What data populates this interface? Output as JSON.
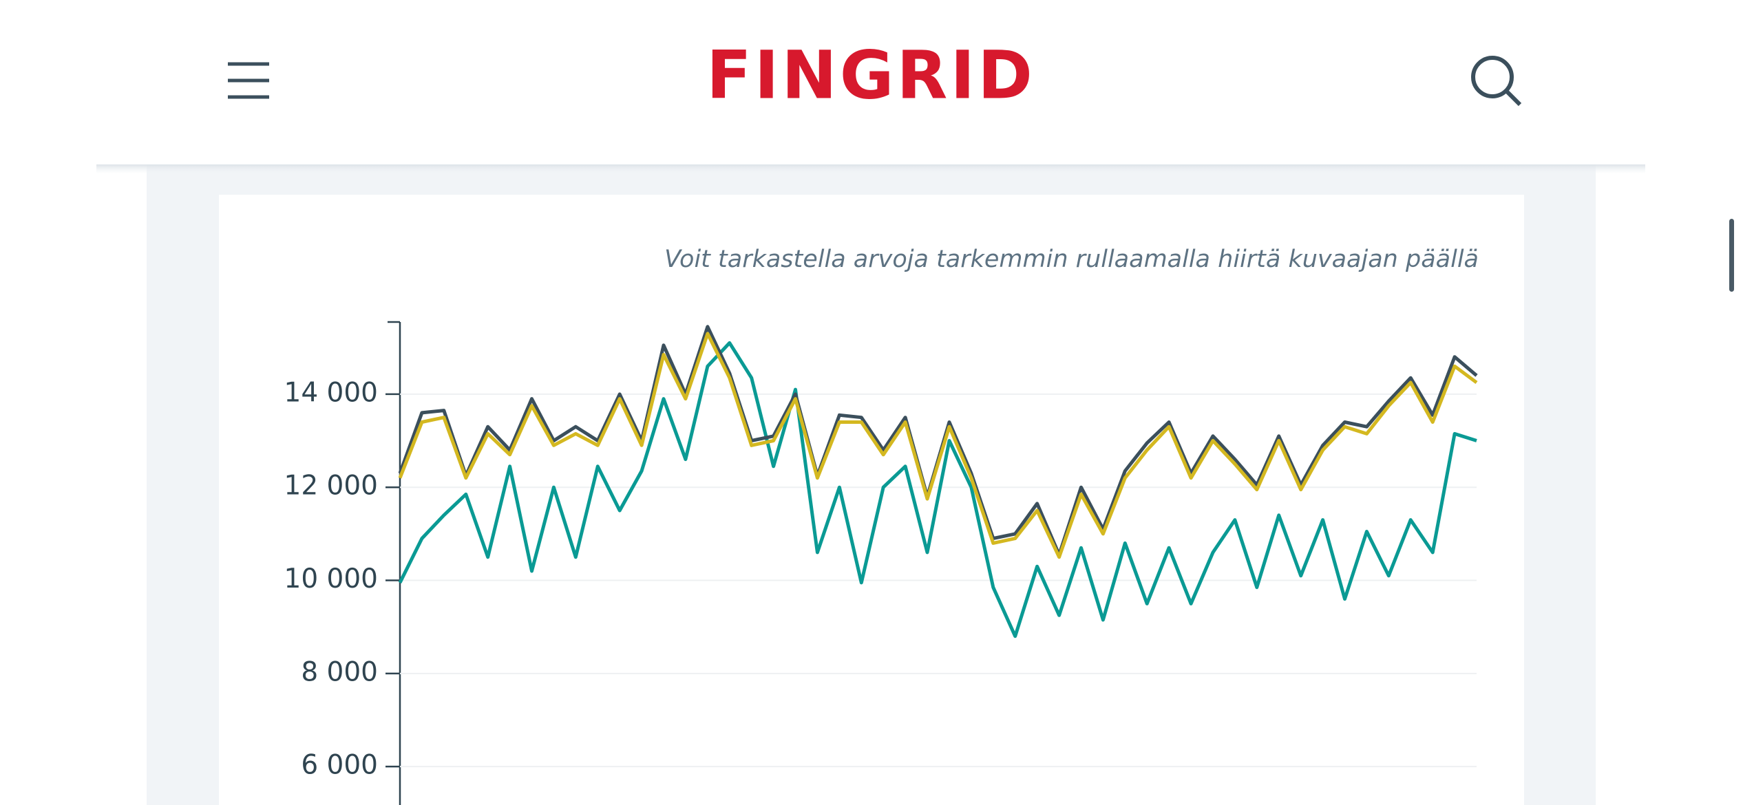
{
  "header": {
    "logo": "FINGRID"
  },
  "hint": "Voit tarkastella arvoja tarkemmin rullaamalla hiirtä kuvaajan päällä",
  "chart_data": {
    "type": "line",
    "ylim": [
      5175,
      15550
    ],
    "yticks": [
      {
        "value": 6000,
        "label": "6 000"
      },
      {
        "value": 8000,
        "label": "8 000"
      },
      {
        "value": 10000,
        "label": "10 000"
      },
      {
        "value": 12000,
        "label": "12 000"
      },
      {
        "value": 14000,
        "label": "14 000"
      }
    ],
    "grid": true,
    "series": [
      {
        "color": "#0a9a94",
        "values": [
          9950,
          10900,
          11400,
          11850,
          10500,
          12450,
          10200,
          12000,
          10500,
          12450,
          11500,
          12350,
          13900,
          12600,
          14600,
          15100,
          14350,
          12450,
          14100,
          10600,
          12000,
          9950,
          12000,
          12450,
          10600,
          13000,
          12000,
          9850,
          8800,
          10300,
          9250,
          10700,
          9150,
          10800,
          9500,
          10700,
          9500,
          10600,
          11300,
          9850,
          11400,
          10100,
          11300,
          9600,
          11050,
          10100,
          11300,
          10600,
          13150,
          13000
        ]
      },
      {
        "color": "#3b4f5c",
        "values": [
          12300,
          13600,
          13650,
          12250,
          13300,
          12800,
          13900,
          13000,
          13300,
          13000,
          14000,
          13000,
          15050,
          14000,
          15450,
          14450,
          13000,
          13100,
          14000,
          12250,
          13550,
          13500,
          12800,
          13500,
          11800,
          13400,
          12300,
          10900,
          11000,
          11650,
          10550,
          12000,
          11100,
          12350,
          12950,
          13400,
          12300,
          13100,
          12600,
          12050,
          13100,
          12050,
          12900,
          13400,
          13300,
          13850,
          14350,
          13550,
          14800,
          14400
        ]
      },
      {
        "color": "#d4b820",
        "values": [
          12200,
          13400,
          13500,
          12200,
          13150,
          12700,
          13750,
          12900,
          13150,
          12900,
          13900,
          12900,
          14850,
          13900,
          15300,
          14350,
          12900,
          13000,
          13900,
          12200,
          13400,
          13400,
          12700,
          13400,
          11750,
          13300,
          12200,
          10800,
          10900,
          11500,
          10500,
          11850,
          11000,
          12200,
          12800,
          13300,
          12200,
          13000,
          12500,
          11950,
          13000,
          11950,
          12800,
          13300,
          13150,
          13750,
          14250,
          13400,
          14600,
          14250
        ]
      }
    ]
  }
}
